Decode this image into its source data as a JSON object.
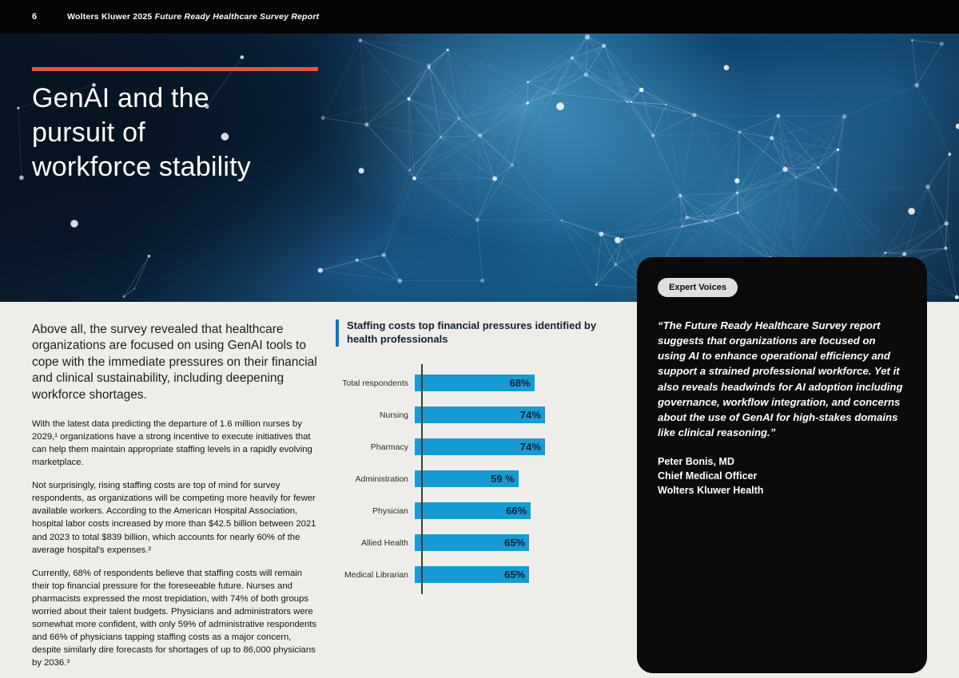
{
  "page": {
    "number": "6",
    "header_brand": "Wolters Kluwer 2025",
    "header_title": "Future Ready Healthcare Survey Report"
  },
  "hero": {
    "title_lines": [
      "GenAI and the",
      "pursuit of",
      "workforce stability"
    ],
    "accent_color": "#e0544d"
  },
  "article": {
    "intro": "Above all, the survey revealed that healthcare organizations are focused on using GenAI tools to cope with the immediate pressures on their financial and clinical sustainability, including deepening workforce shortages.",
    "paragraphs": [
      "With the latest data predicting the departure of 1.6 million nurses by 2029,¹ organizations have a strong incentive to execute initiatives that can help them maintain appropriate staffing levels in a rapidly evolving marketplace.",
      "Not surprisingly, rising staffing costs are top of mind for survey respondents, as organizations will be competing more heavily for fewer available workers. According to the American Hospital Association, hospital labor costs increased by more than $42.5 billion between 2021 and 2023 to total $839 billion, which accounts for nearly 60% of the average hospital's expenses.²",
      "Currently, 68% of respondents believe that staffing costs will remain their top financial pressure for the foreseeable future. Nurses and pharmacists expressed the most trepidation, with 74% of both groups worried about their talent budgets. Physicians and administrators were somewhat more confident, with only 59% of administrative respondents and 66% of physicians tapping staffing costs as a major concern, despite similarly dire forecasts for shortages of up to 86,000 physicians by 2036.³"
    ]
  },
  "chart_data": {
    "type": "bar",
    "orientation": "horizontal",
    "title": "Staffing costs top financial pressures identified by health professionals",
    "categories": [
      "Total respondents",
      "Nursing",
      "Pharmacy",
      "Administration",
      "Physician",
      "Allied Health",
      "Medical Librarian"
    ],
    "values": [
      68,
      74,
      74,
      59,
      66,
      65,
      65
    ],
    "value_labels": [
      "68%",
      "74%",
      "74%",
      "59 %",
      "66%",
      "65%",
      "65%"
    ],
    "bar_color": "#169bd5",
    "xlim": [
      0,
      100
    ],
    "legend": "none",
    "grid": false
  },
  "expert_card": {
    "badge": "Expert Voices",
    "quote": "“The Future Ready Healthcare Survey report suggests that organizations are focused on using AI to enhance operational efficiency and support a strained professional workforce. Yet it also reveals headwinds for AI adoption including governance, workflow integration, and concerns about the use of GenAI for high-stakes domains like clinical reasoning.”",
    "attribution": [
      "Peter Bonis, MD",
      "Chief Medical Officer",
      "Wolters Kluwer Health"
    ]
  }
}
